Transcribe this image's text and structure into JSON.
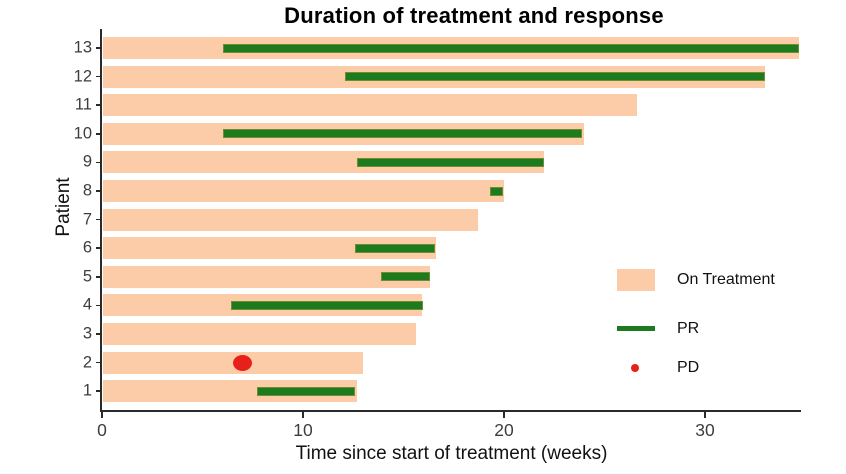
{
  "title": "Duration of treatment and response",
  "axes": {
    "x_label": "Time since start of treatment (weeks)",
    "y_label": "Patient",
    "x_ticks": [
      "0",
      "10",
      "20",
      "30"
    ]
  },
  "legend": {
    "items": [
      {
        "key": "on_treatment",
        "label": "On Treatment",
        "swatch": "bar"
      },
      {
        "key": "pr",
        "label": "PR",
        "swatch": "line"
      },
      {
        "key": "pd",
        "label": "PD",
        "swatch": "dot"
      }
    ]
  },
  "colors": {
    "on_treatment": "#fccba8",
    "pr": "#1e7a1e",
    "pr_edge": "#6d8f2e",
    "pd": "#e8201a",
    "axis": "#2a2a2a",
    "tick_text": "#3d3d3d"
  },
  "chart_data": {
    "type": "bar",
    "orientation": "horizontal",
    "title": "Duration of treatment and response",
    "xlabel": "Time since start of treatment (weeks)",
    "ylabel": "Patient",
    "xlim": [
      0,
      37
    ],
    "x_tick_values": [
      0,
      10,
      20,
      30
    ],
    "grid": false,
    "legend_position": "right-middle",
    "series_legend": [
      "On Treatment",
      "PR",
      "PD"
    ],
    "patients": [
      {
        "patient": 13,
        "on_treatment_weeks": 34.7,
        "pr": [
          6.0,
          34.7
        ],
        "pd_week": null
      },
      {
        "patient": 12,
        "on_treatment_weeks": 33.0,
        "pr": [
          12.1,
          33.0
        ],
        "pd_week": null
      },
      {
        "patient": 11,
        "on_treatment_weeks": 26.6,
        "pr": null,
        "pd_week": null
      },
      {
        "patient": 10,
        "on_treatment_weeks": 24.0,
        "pr": [
          6.0,
          23.9
        ],
        "pd_week": null
      },
      {
        "patient": 9,
        "on_treatment_weeks": 22.0,
        "pr": [
          12.7,
          22.0
        ],
        "pd_week": null
      },
      {
        "patient": 8,
        "on_treatment_weeks": 20.0,
        "pr": [
          19.3,
          19.95
        ],
        "pd_week": null
      },
      {
        "patient": 7,
        "on_treatment_weeks": 18.7,
        "pr": null,
        "pd_week": null
      },
      {
        "patient": 6,
        "on_treatment_weeks": 16.6,
        "pr": [
          12.6,
          16.55
        ],
        "pd_week": null
      },
      {
        "patient": 5,
        "on_treatment_weeks": 16.3,
        "pr": [
          13.9,
          16.3
        ],
        "pd_week": null
      },
      {
        "patient": 4,
        "on_treatment_weeks": 15.9,
        "pr": [
          6.4,
          15.95
        ],
        "pd_week": null
      },
      {
        "patient": 3,
        "on_treatment_weeks": 15.6,
        "pr": null,
        "pd_week": null
      },
      {
        "patient": 2,
        "on_treatment_weeks": 13.0,
        "pr": null,
        "pd_week": 7.0
      },
      {
        "patient": 1,
        "on_treatment_weeks": 12.7,
        "pr": [
          7.7,
          12.6
        ],
        "pd_week": null
      }
    ]
  }
}
